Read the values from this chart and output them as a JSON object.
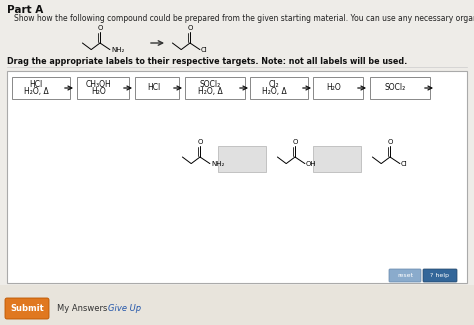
{
  "title": "Part A",
  "subtitle": "Show how the following compound could be prepared from the given starting material. You can use any necessary organic or inorganic reagents.",
  "drag_label": "Drag the appropriate labels to their respective targets. Note: not all labels will be used.",
  "reagent_boxes": [
    {
      "line1": "HCl",
      "line2": "H₂O, Δ"
    },
    {
      "line1": "CH₃OH",
      "line2": "H₂O"
    },
    {
      "line1": "HCl",
      "line2": ""
    },
    {
      "line1": "SOCl₂",
      "line2": "H₂O, Δ"
    },
    {
      "line1": "Cl₂",
      "line2": "H₂O, Δ"
    },
    {
      "line1": "H₂O",
      "line2": ""
    },
    {
      "line1": "SOCl₂",
      "line2": ""
    }
  ],
  "bg_color": "#eeece8",
  "main_box_bg": "#ffffff",
  "box_border": "#aaaaaa",
  "reagent_border": "#888888",
  "arrow_color": "#222222",
  "submit_bg": "#e8e4dc",
  "submit_btn_color": "#e07820",
  "reset_btn_color": "#8aabcc",
  "help_btn_color": "#336699",
  "give_up_color": "#2255aa"
}
